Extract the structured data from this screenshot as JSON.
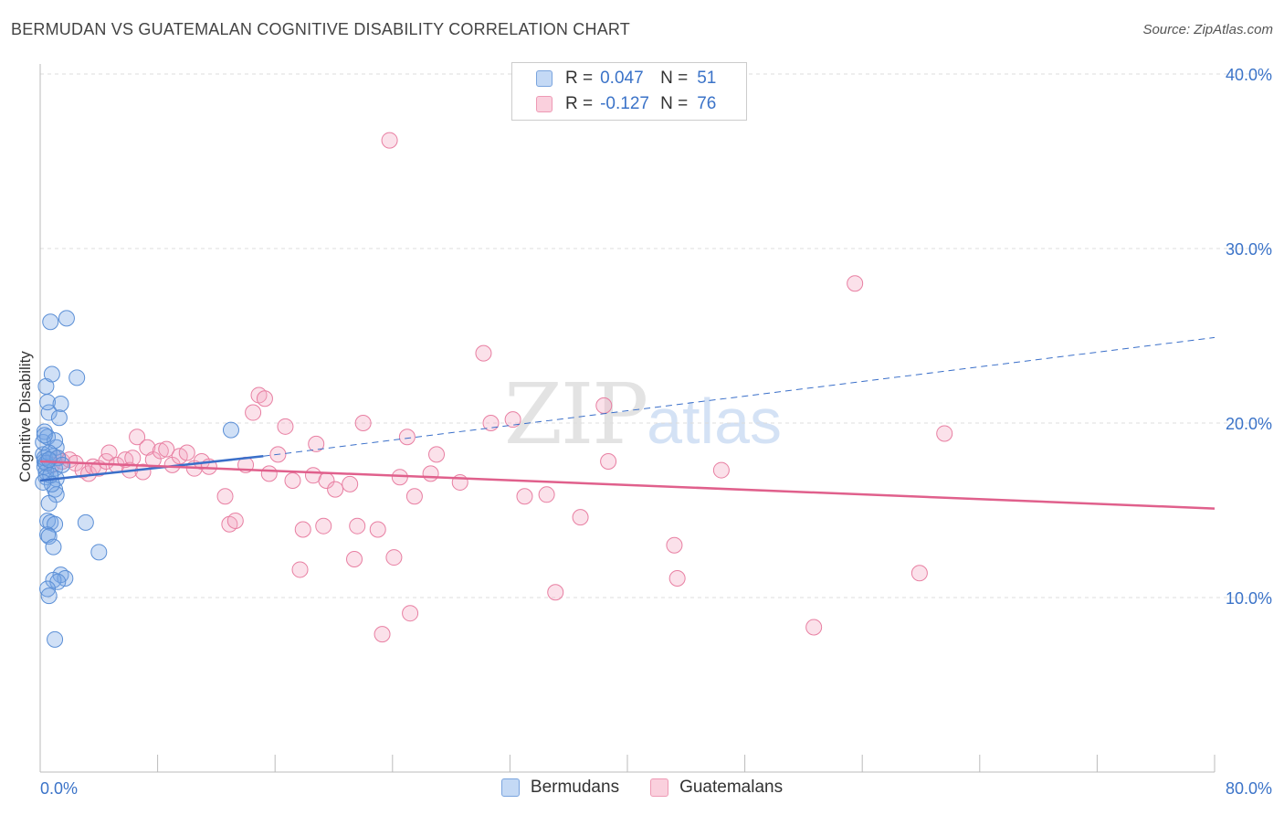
{
  "title": "BERMUDAN VS GUATEMALAN COGNITIVE DISABILITY CORRELATION CHART",
  "source": "Source: ZipAtlas.com",
  "watermark": {
    "zip": "ZIP",
    "atlas": "atlas"
  },
  "legend": {
    "rows": [
      {
        "r_label": "R =",
        "r_value": "0.047",
        "n_label": "N =",
        "n_value": "51",
        "color": "#a9c8f0"
      },
      {
        "r_label": "R =",
        "r_value": "-0.127",
        "n_label": "N =",
        "n_value": "76",
        "color": "#f6b8cb"
      }
    ]
  },
  "bottom_legend": [
    {
      "label": "Bermudans",
      "color": "#a9c8f0"
    },
    {
      "label": "Guatemalans",
      "color": "#f6b8cb"
    }
  ],
  "colors": {
    "blue": "#5b8fd6",
    "blue_fill": "rgba(120,165,230,0.35)",
    "pink": "#e87fa2",
    "pink_fill": "rgba(244,170,195,0.35)",
    "blue_line": "#3a6fc9",
    "pink_line": "#e0608c",
    "tick_label": "#3b73c8"
  },
  "chart_data": {
    "type": "scatter",
    "title": "BERMUDAN VS GUATEMALAN COGNITIVE DISABILITY CORRELATION CHART",
    "xlabel": "",
    "ylabel": "Cognitive Disability",
    "xlim": [
      0,
      80
    ],
    "ylim": [
      0,
      41
    ],
    "x_tick_labels": [
      "0.0%",
      "80.0%"
    ],
    "y_ticks": [
      10,
      20,
      30,
      40
    ],
    "y_tick_labels": [
      "10.0%",
      "20.0%",
      "30.0%",
      "40.0%"
    ],
    "grid": "horizontal dashed",
    "legend_position": "top-center",
    "series": [
      {
        "name": "Bermudans",
        "r": 0.047,
        "n": 51,
        "trend": {
          "x0": 0,
          "y0": 16.7,
          "x1": 15.2,
          "y1": 18.1,
          "dashed_to_x": 80,
          "dashed_to_y": 24.9
        },
        "points": [
          [
            0.2,
            18.2
          ],
          [
            0.3,
            17.8
          ],
          [
            0.3,
            17.5
          ],
          [
            0.4,
            17.2
          ],
          [
            0.4,
            16.9
          ],
          [
            0.2,
            18.9
          ],
          [
            0.3,
            19.5
          ],
          [
            0.5,
            19.2
          ],
          [
            0.6,
            20.6
          ],
          [
            0.5,
            21.2
          ],
          [
            0.4,
            22.1
          ],
          [
            0.8,
            22.8
          ],
          [
            0.7,
            25.8
          ],
          [
            1.8,
            26.0
          ],
          [
            2.5,
            22.6
          ],
          [
            1.4,
            21.1
          ],
          [
            1.3,
            20.3
          ],
          [
            1.1,
            18.6
          ],
          [
            1.0,
            19.0
          ],
          [
            0.9,
            18.1
          ],
          [
            1.0,
            17.4
          ],
          [
            1.1,
            16.8
          ],
          [
            1.0,
            16.2
          ],
          [
            1.1,
            15.9
          ],
          [
            0.6,
            15.4
          ],
          [
            0.5,
            14.4
          ],
          [
            0.7,
            14.3
          ],
          [
            1.0,
            14.2
          ],
          [
            3.1,
            14.3
          ],
          [
            0.5,
            13.6
          ],
          [
            0.6,
            13.5
          ],
          [
            0.9,
            12.9
          ],
          [
            4.0,
            12.6
          ],
          [
            1.4,
            11.3
          ],
          [
            1.7,
            11.1
          ],
          [
            0.9,
            11.0
          ],
          [
            1.2,
            10.9
          ],
          [
            0.5,
            10.5
          ],
          [
            0.6,
            10.1
          ],
          [
            1.0,
            7.6
          ],
          [
            13.0,
            19.6
          ],
          [
            0.3,
            18.0
          ],
          [
            0.4,
            17.7
          ],
          [
            0.6,
            18.3
          ],
          [
            0.7,
            17.0
          ],
          [
            0.8,
            16.5
          ],
          [
            1.2,
            18.0
          ],
          [
            0.2,
            16.6
          ],
          [
            0.3,
            19.3
          ],
          [
            0.6,
            17.9
          ],
          [
            1.5,
            17.6
          ]
        ]
      },
      {
        "name": "Guatemalans",
        "r": -0.127,
        "n": 76,
        "trend": {
          "x0": 0,
          "y0": 17.8,
          "x1": 80,
          "y1": 15.1
        },
        "points": [
          [
            0.8,
            17.6
          ],
          [
            1.2,
            18.0
          ],
          [
            1.5,
            17.8
          ],
          [
            2.0,
            17.9
          ],
          [
            2.4,
            17.7
          ],
          [
            2.9,
            17.3
          ],
          [
            3.3,
            17.1
          ],
          [
            3.6,
            17.5
          ],
          [
            4.0,
            17.4
          ],
          [
            4.5,
            17.8
          ],
          [
            4.7,
            18.3
          ],
          [
            5.2,
            17.6
          ],
          [
            5.8,
            17.9
          ],
          [
            6.1,
            17.3
          ],
          [
            6.3,
            18.0
          ],
          [
            6.6,
            19.2
          ],
          [
            7.0,
            17.2
          ],
          [
            7.3,
            18.6
          ],
          [
            7.7,
            17.9
          ],
          [
            8.2,
            18.4
          ],
          [
            8.6,
            18.5
          ],
          [
            9.0,
            17.6
          ],
          [
            9.5,
            18.1
          ],
          [
            10.0,
            18.3
          ],
          [
            10.5,
            17.4
          ],
          [
            11.0,
            17.8
          ],
          [
            11.5,
            17.5
          ],
          [
            12.6,
            15.8
          ],
          [
            12.9,
            14.2
          ],
          [
            13.3,
            14.4
          ],
          [
            14.0,
            17.6
          ],
          [
            14.5,
            20.6
          ],
          [
            14.9,
            21.6
          ],
          [
            15.3,
            21.4
          ],
          [
            15.6,
            17.1
          ],
          [
            16.2,
            18.2
          ],
          [
            16.7,
            19.8
          ],
          [
            17.2,
            16.7
          ],
          [
            17.7,
            11.6
          ],
          [
            17.9,
            13.9
          ],
          [
            18.6,
            17.0
          ],
          [
            18.8,
            18.8
          ],
          [
            19.3,
            14.1
          ],
          [
            19.5,
            16.7
          ],
          [
            20.1,
            16.2
          ],
          [
            21.1,
            16.5
          ],
          [
            21.4,
            12.2
          ],
          [
            21.6,
            14.1
          ],
          [
            22.0,
            20.0
          ],
          [
            23.0,
            13.9
          ],
          [
            23.3,
            7.9
          ],
          [
            23.8,
            36.2
          ],
          [
            24.1,
            12.3
          ],
          [
            24.5,
            16.9
          ],
          [
            25.0,
            19.2
          ],
          [
            25.2,
            9.1
          ],
          [
            25.5,
            15.8
          ],
          [
            26.6,
            17.1
          ],
          [
            27.0,
            18.2
          ],
          [
            28.6,
            16.6
          ],
          [
            30.2,
            24.0
          ],
          [
            30.7,
            20.0
          ],
          [
            32.2,
            20.2
          ],
          [
            33.0,
            15.8
          ],
          [
            34.5,
            15.9
          ],
          [
            35.1,
            10.3
          ],
          [
            36.8,
            14.6
          ],
          [
            38.4,
            21.0
          ],
          [
            38.7,
            17.8
          ],
          [
            43.2,
            13.0
          ],
          [
            43.4,
            11.1
          ],
          [
            46.4,
            17.3
          ],
          [
            52.7,
            8.3
          ],
          [
            55.5,
            28.0
          ],
          [
            59.9,
            11.4
          ],
          [
            61.6,
            19.4
          ]
        ]
      }
    ]
  }
}
